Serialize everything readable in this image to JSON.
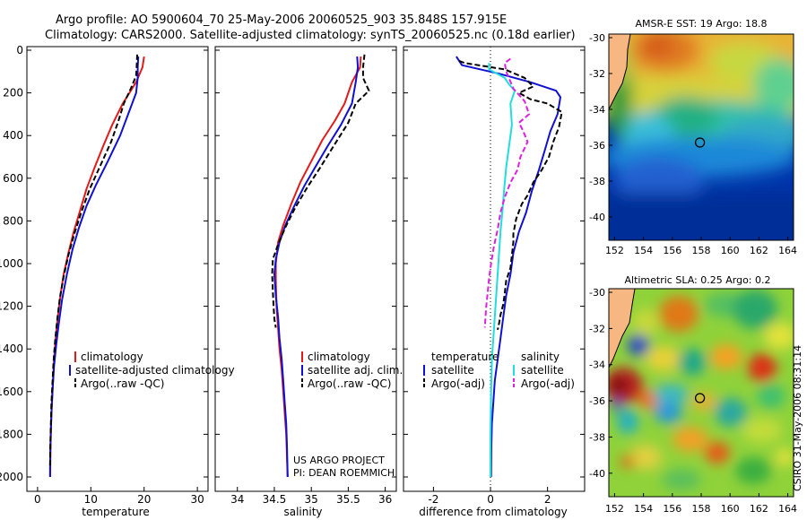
{
  "header": {
    "line1": "Argo profile: AO 5900604_70 25-May-2006 20060525_903 35.848S 157.915E",
    "line2": "Climatology: CARS2000. Satellite-adjusted climatology: synTS_20060525.nc (0.18d earlier)"
  },
  "credit": {
    "line1": "US ARGO PROJECT",
    "line2": "PI: DEAN ROEMMICH"
  },
  "stamp": "CSIRO 31-May-2006 08:31:14",
  "colors": {
    "climatology": "#e11a1a",
    "satellite": "#1010d0",
    "argo": "#000000",
    "cyan": "#22dddd",
    "magenta": "#e020e0"
  },
  "chart_data": [
    {
      "type": "line",
      "xlabel": "temperature",
      "ylabel": "",
      "xlim": [
        -2,
        32
      ],
      "ylim": [
        2050,
        0
      ],
      "x_ticks": [
        "0",
        "10",
        "20",
        "30"
      ],
      "y_ticks": [
        "0",
        "200",
        "400",
        "600",
        "800",
        "1000",
        "1200",
        "1400",
        "1600",
        "1800",
        "2000"
      ],
      "legend": [
        "climatology",
        "satellite-adjusted climatology",
        "Argo(..raw -QC)"
      ],
      "series": [
        {
          "name": "climatology",
          "color": "climatology",
          "dash": "",
          "points": [
            [
              20,
              30
            ],
            [
              19.7,
              80
            ],
            [
              18.5,
              150
            ],
            [
              16,
              250
            ],
            [
              14,
              350
            ],
            [
              12.3,
              450
            ],
            [
              10.7,
              550
            ],
            [
              9.2,
              650
            ],
            [
              8,
              750
            ],
            [
              6.8,
              850
            ],
            [
              5.8,
              950
            ],
            [
              4.9,
              1050
            ],
            [
              4.3,
              1150
            ],
            [
              3.8,
              1250
            ],
            [
              3.4,
              1350
            ],
            [
              3.1,
              1450
            ],
            [
              2.9,
              1550
            ],
            [
              2.7,
              1650
            ],
            [
              2.55,
              1750
            ],
            [
              2.45,
              1850
            ],
            [
              2.4,
              1950
            ],
            [
              2.38,
              2000
            ]
          ]
        },
        {
          "name": "satellite-adjusted climatology",
          "color": "satellite",
          "dash": "",
          "points": [
            [
              18.9,
              30
            ],
            [
              18.8,
              80
            ],
            [
              18.8,
              130
            ],
            [
              18.5,
              200
            ],
            [
              17.3,
              280
            ],
            [
              15.5,
              400
            ],
            [
              13.2,
              520
            ],
            [
              11,
              630
            ],
            [
              9.2,
              730
            ],
            [
              7.8,
              830
            ],
            [
              6.6,
              930
            ],
            [
              5.5,
              1050
            ],
            [
              4.6,
              1170
            ],
            [
              4,
              1280
            ],
            [
              3.5,
              1380
            ],
            [
              3.1,
              1480
            ],
            [
              2.85,
              1580
            ],
            [
              2.65,
              1680
            ],
            [
              2.5,
              1780
            ],
            [
              2.4,
              1880
            ],
            [
              2.35,
              2000
            ]
          ]
        },
        {
          "name": "Argo(..raw -QC)",
          "color": "argo",
          "dash": "6,3",
          "points": [
            [
              18.7,
              20
            ],
            [
              18.6,
              80
            ],
            [
              18.5,
              120
            ],
            [
              17.5,
              180
            ],
            [
              16.2,
              250
            ],
            [
              15.2,
              330
            ],
            [
              13.8,
              430
            ],
            [
              11.8,
              540
            ],
            [
              9.8,
              650
            ],
            [
              8.2,
              760
            ],
            [
              6.9,
              860
            ],
            [
              5.8,
              960
            ],
            [
              4.9,
              1060
            ],
            [
              4.2,
              1160
            ],
            [
              3.7,
              1260
            ],
            [
              3.3,
              1360
            ],
            [
              3,
              1460
            ],
            [
              2.8,
              1560
            ],
            [
              2.6,
              1660
            ],
            [
              2.5,
              1760
            ],
            [
              2.4,
              1860
            ],
            [
              2.35,
              1960
            ]
          ]
        }
      ]
    },
    {
      "type": "line",
      "xlabel": "salinity",
      "xlim": [
        33.7,
        36.15
      ],
      "ylim": [
        2050,
        0
      ],
      "x_ticks": [
        "34",
        "34.5",
        "35",
        "35.5",
        "36"
      ],
      "legend": [
        "climatology",
        "satellite adj. clim.",
        "Argo(..raw -QC)"
      ],
      "series": [
        {
          "name": "climatology",
          "color": "climatology",
          "dash": "",
          "points": [
            [
              35.67,
              30
            ],
            [
              35.66,
              80
            ],
            [
              35.55,
              150
            ],
            [
              35.45,
              250
            ],
            [
              35.32,
              330
            ],
            [
              35.15,
              420
            ],
            [
              35.0,
              520
            ],
            [
              34.85,
              620
            ],
            [
              34.73,
              720
            ],
            [
              34.62,
              820
            ],
            [
              34.55,
              900
            ],
            [
              34.52,
              1000
            ],
            [
              34.52,
              1080
            ],
            [
              34.53,
              1200
            ],
            [
              34.55,
              1300
            ],
            [
              34.57,
              1400
            ],
            [
              34.6,
              1500
            ],
            [
              34.62,
              1600
            ],
            [
              34.64,
              1700
            ],
            [
              34.66,
              1800
            ],
            [
              34.67,
              1900
            ],
            [
              34.68,
              2000
            ]
          ]
        },
        {
          "name": "satellite adj. clim.",
          "color": "satellite",
          "dash": "",
          "points": [
            [
              35.62,
              30
            ],
            [
              35.63,
              80
            ],
            [
              35.6,
              150
            ],
            [
              35.55,
              250
            ],
            [
              35.4,
              350
            ],
            [
              35.22,
              450
            ],
            [
              35.05,
              550
            ],
            [
              34.9,
              640
            ],
            [
              34.77,
              730
            ],
            [
              34.65,
              820
            ],
            [
              34.57,
              900
            ],
            [
              34.52,
              980
            ],
            [
              34.5,
              1050
            ],
            [
              34.52,
              1150
            ],
            [
              34.55,
              1250
            ],
            [
              34.57,
              1350
            ],
            [
              34.6,
              1450
            ],
            [
              34.62,
              1550
            ],
            [
              34.64,
              1650
            ],
            [
              34.66,
              1750
            ],
            [
              34.67,
              1850
            ],
            [
              34.68,
              2000
            ]
          ]
        },
        {
          "name": "Argo(..raw -QC)",
          "color": "argo",
          "dash": "6,3",
          "points": [
            [
              35.72,
              20
            ],
            [
              35.7,
              80
            ],
            [
              35.7,
              130
            ],
            [
              35.78,
              190
            ],
            [
              35.6,
              250
            ],
            [
              35.5,
              340
            ],
            [
              35.3,
              450
            ],
            [
              35.12,
              550
            ],
            [
              34.95,
              640
            ],
            [
              34.78,
              740
            ],
            [
              34.65,
              830
            ],
            [
              34.55,
              910
            ],
            [
              34.48,
              980
            ],
            [
              34.47,
              1050
            ],
            [
              34.48,
              1130
            ],
            [
              34.49,
              1200
            ],
            [
              34.5,
              1260
            ],
            [
              34.52,
              1300
            ]
          ]
        }
      ]
    },
    {
      "type": "line",
      "xlabel": "difference from climatology",
      "xlim": [
        -3.05,
        3.3
      ],
      "ylim": [
        2050,
        0
      ],
      "x_ticks": [
        "-2",
        "0",
        "2"
      ],
      "zero_line": 0,
      "legend": [
        "temperature",
        "satellite",
        "Argo(-adj)",
        "salinity",
        "satellite",
        "Argo(-adj)"
      ],
      "series": [
        {
          "name": "temperature satellite",
          "color": "satellite",
          "dash": "",
          "points": [
            [
              -1.2,
              30
            ],
            [
              -1.0,
              70
            ],
            [
              0.3,
              110
            ],
            [
              1.4,
              150
            ],
            [
              2.3,
              190
            ],
            [
              2.45,
              220
            ],
            [
              2.35,
              300
            ],
            [
              2.1,
              380
            ],
            [
              1.9,
              470
            ],
            [
              1.7,
              560
            ],
            [
              1.45,
              660
            ],
            [
              1.25,
              760
            ],
            [
              1.0,
              850
            ],
            [
              0.8,
              950
            ],
            [
              0.7,
              1050
            ],
            [
              0.55,
              1150
            ],
            [
              0.45,
              1250
            ],
            [
              0.35,
              1350
            ],
            [
              0.25,
              1450
            ],
            [
              0.15,
              1550
            ],
            [
              0.1,
              1650
            ],
            [
              0.05,
              1750
            ],
            [
              0.03,
              1850
            ],
            [
              0.02,
              2000
            ]
          ]
        },
        {
          "name": "temperature Argo(-adj)",
          "color": "argo",
          "dash": "6,3",
          "points": [
            [
              -1.1,
              50
            ],
            [
              -0.9,
              60
            ],
            [
              0.5,
              90
            ],
            [
              1.2,
              130
            ],
            [
              1.5,
              170
            ],
            [
              1.0,
              200
            ],
            [
              1.4,
              230
            ],
            [
              2.0,
              250
            ],
            [
              2.5,
              290
            ],
            [
              2.4,
              360
            ],
            [
              2.2,
              430
            ],
            [
              2.05,
              500
            ],
            [
              1.8,
              560
            ],
            [
              1.5,
              620
            ],
            [
              1.3,
              680
            ],
            [
              1.1,
              720
            ],
            [
              0.9,
              790
            ],
            [
              0.8,
              860
            ],
            [
              0.8,
              900
            ],
            [
              0.75,
              960
            ],
            [
              0.7,
              1020
            ],
            [
              0.55,
              1080
            ],
            [
              0.5,
              1140
            ],
            [
              0.45,
              1190
            ],
            [
              0.35,
              1240
            ],
            [
              0.3,
              1280
            ],
            [
              0.25,
              1310
            ]
          ]
        },
        {
          "name": "salinity satellite",
          "color": "cyan",
          "dash": "",
          "points": [
            [
              -0.05,
              60
            ],
            [
              -0.05,
              90
            ],
            [
              0.5,
              130
            ],
            [
              0.65,
              160
            ],
            [
              0.85,
              190
            ],
            [
              0.7,
              250
            ],
            [
              0.75,
              350
            ],
            [
              0.65,
              450
            ],
            [
              0.55,
              550
            ],
            [
              0.48,
              650
            ],
            [
              0.42,
              750
            ],
            [
              0.35,
              850
            ],
            [
              0.3,
              950
            ],
            [
              0.25,
              1050
            ],
            [
              0.2,
              1150
            ],
            [
              0.15,
              1250
            ],
            [
              0.1,
              1350
            ],
            [
              0.05,
              1450
            ],
            [
              0.02,
              1600
            ],
            [
              0.0,
              1800
            ],
            [
              0.0,
              2000
            ]
          ]
        },
        {
          "name": "salinity Argo(-adj)",
          "color": "magenta",
          "dash": "6,3",
          "points": [
            [
              0.7,
              40
            ],
            [
              0.5,
              60
            ],
            [
              0.55,
              100
            ],
            [
              0.8,
              180
            ],
            [
              1.2,
              240
            ],
            [
              1.35,
              300
            ],
            [
              1.0,
              340
            ],
            [
              1.15,
              380
            ],
            [
              1.3,
              430
            ],
            [
              1.05,
              500
            ],
            [
              0.95,
              560
            ],
            [
              0.7,
              620
            ],
            [
              0.5,
              690
            ],
            [
              0.35,
              760
            ],
            [
              0.25,
              840
            ],
            [
              0.12,
              920
            ],
            [
              0.02,
              1000
            ],
            [
              -0.05,
              1070
            ],
            [
              -0.1,
              1140
            ],
            [
              -0.15,
              1200
            ],
            [
              -0.18,
              1260
            ],
            [
              -0.2,
              1300
            ]
          ]
        }
      ]
    },
    {
      "type": "heatmap",
      "title": "AMSR-E SST: 19 Argo: 18.8",
      "xlim": [
        151.6,
        164.4
      ],
      "ylim": [
        -41.3,
        -29.8
      ],
      "x_ticks": [
        "152",
        "154",
        "156",
        "158",
        "160",
        "162",
        "164"
      ],
      "y_ticks": [
        "-30",
        "-32",
        "-34",
        "-36",
        "-38",
        "-40"
      ],
      "marker": {
        "lon": 157.915,
        "lat": -35.848
      }
    },
    {
      "type": "heatmap",
      "title": "Altimetric SLA: 0.25 Argo: 0.2",
      "xlim": [
        151.6,
        164.4
      ],
      "ylim": [
        -41.3,
        -29.8
      ],
      "x_ticks": [
        "152",
        "154",
        "156",
        "158",
        "160",
        "162",
        "164"
      ],
      "y_ticks": [
        "-30",
        "-32",
        "-34",
        "-36",
        "-38",
        "-40"
      ],
      "marker": {
        "lon": 157.915,
        "lat": -35.848
      }
    }
  ]
}
